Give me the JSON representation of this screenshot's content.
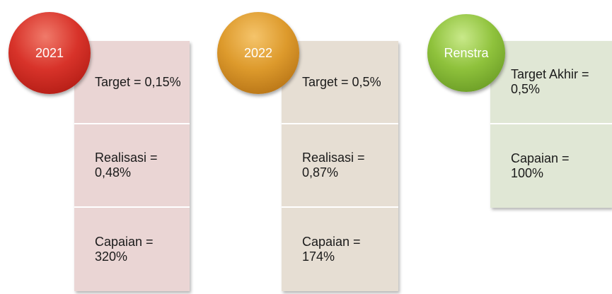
{
  "groups": [
    {
      "label": "2021",
      "items": [
        "Target = 0,15%",
        "Realisasi = 0,48%",
        "Capaian = 320%"
      ]
    },
    {
      "label": "2022",
      "items": [
        "Target = 0,5%",
        "Realisasi = 0,87%",
        "Capaian = 174%"
      ]
    },
    {
      "label": "Renstra",
      "items": [
        "Target Akhir = 0,5%",
        "Capaian = 100%"
      ]
    }
  ]
}
